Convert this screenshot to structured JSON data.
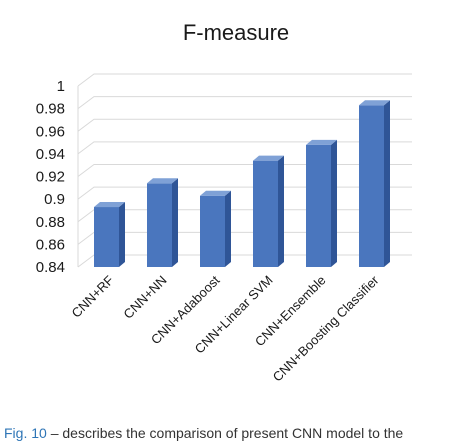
{
  "chart_data": {
    "type": "bar",
    "title": "F-measure",
    "categories": [
      "CNN+RF",
      "CNN+NN",
      "CNN+Adaboost",
      "CNN+Linear SVM",
      "CNN+Ensemble",
      "CNN+Boosting Classifier"
    ],
    "values": [
      0.893,
      0.914,
      0.903,
      0.934,
      0.948,
      0.983
    ],
    "ylim": [
      0.84,
      1.0
    ],
    "yticks": [
      "0.84",
      "0.86",
      "0.88",
      "0.9",
      "0.92",
      "0.94",
      "0.96",
      "0.98",
      "1"
    ],
    "grid": true,
    "colors": {
      "bar_front": "#4a76be",
      "bar_side": "#2f5597",
      "bar_top": "#7fa1d6",
      "grid": "#d9d9d9"
    }
  },
  "caption": {
    "label": "Fig. 10",
    "text": "– describes the comparison of present CNN model to the"
  }
}
